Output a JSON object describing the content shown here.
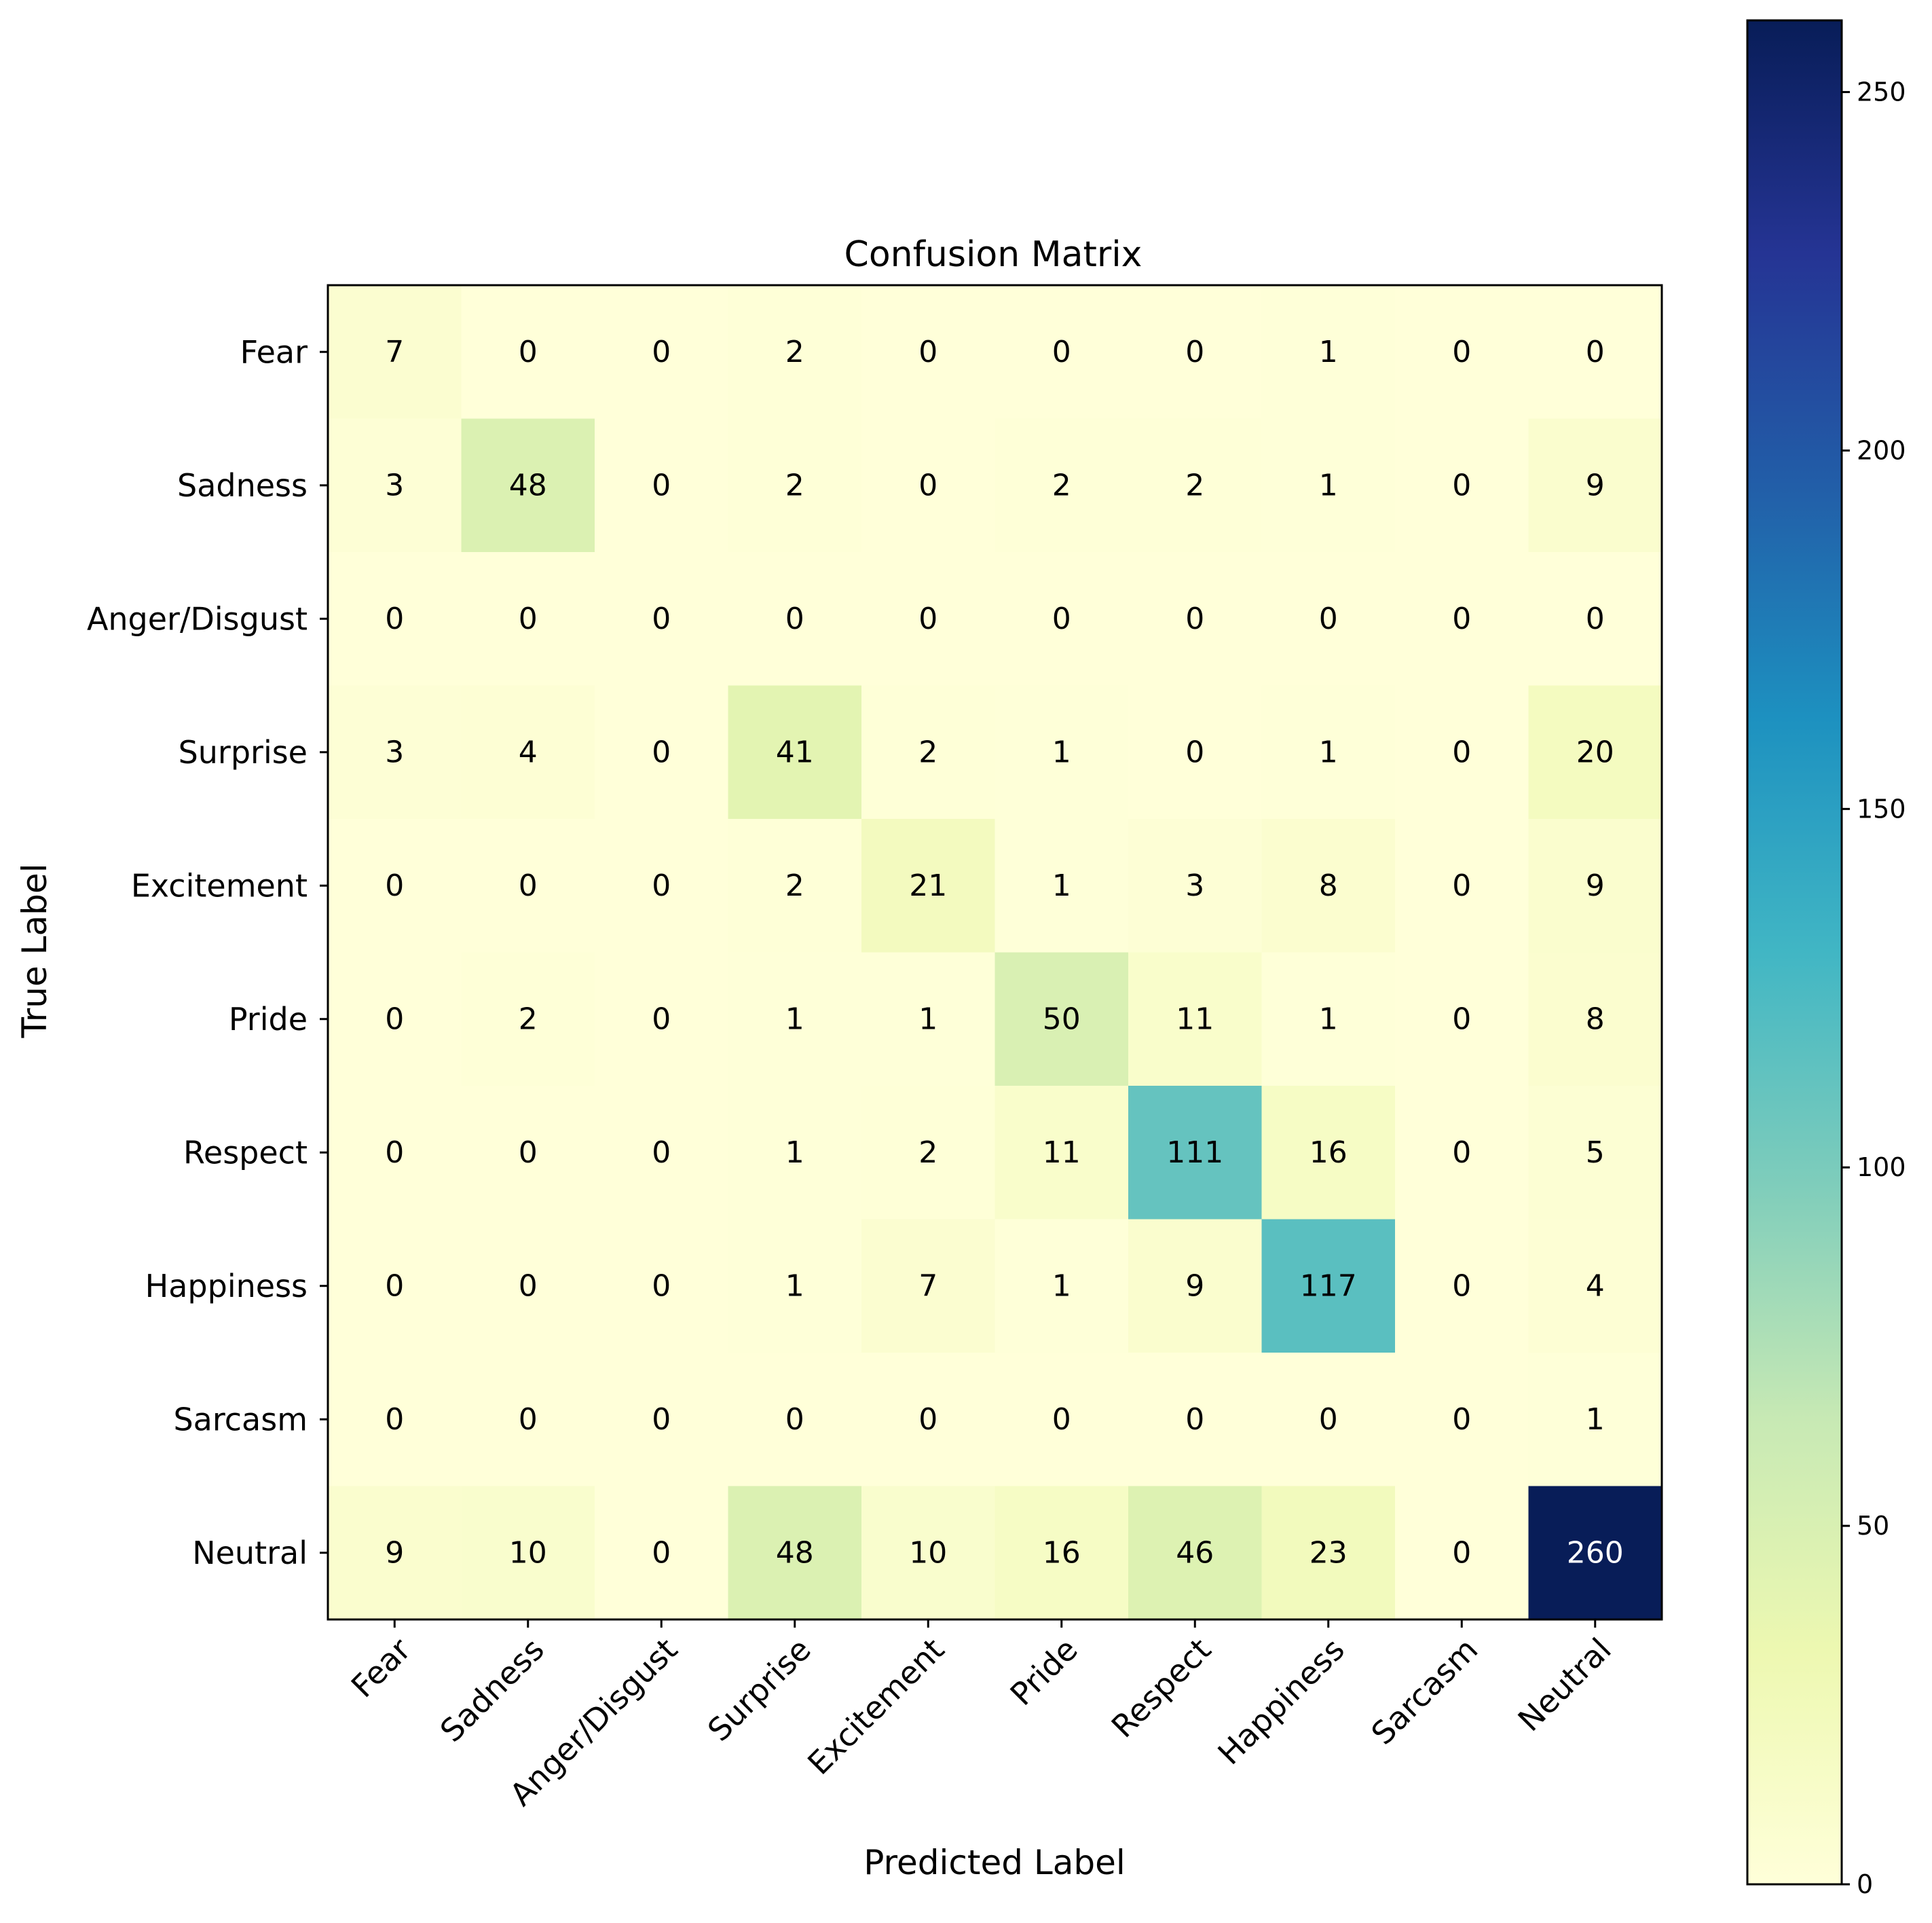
{
  "chart_data": {
    "type": "heatmap",
    "title": "Confusion Matrix",
    "xlabel": "Predicted Label",
    "ylabel": "True Label",
    "x_categories": [
      "Fear",
      "Sadness",
      "Anger/Disgust",
      "Surprise",
      "Excitement",
      "Pride",
      "Respect",
      "Happiness",
      "Sarcasm",
      "Neutral"
    ],
    "y_categories": [
      "Fear",
      "Sadness",
      "Anger/Disgust",
      "Surprise",
      "Excitement",
      "Pride",
      "Respect",
      "Happiness",
      "Sarcasm",
      "Neutral"
    ],
    "values": [
      [
        7,
        0,
        0,
        2,
        0,
        0,
        0,
        1,
        0,
        0
      ],
      [
        3,
        48,
        0,
        2,
        0,
        2,
        2,
        1,
        0,
        9
      ],
      [
        0,
        0,
        0,
        0,
        0,
        0,
        0,
        0,
        0,
        0
      ],
      [
        3,
        4,
        0,
        41,
        2,
        1,
        0,
        1,
        0,
        20
      ],
      [
        0,
        0,
        0,
        2,
        21,
        1,
        3,
        8,
        0,
        9
      ],
      [
        0,
        2,
        0,
        1,
        1,
        50,
        11,
        1,
        0,
        8
      ],
      [
        0,
        0,
        0,
        1,
        2,
        11,
        111,
        16,
        0,
        5
      ],
      [
        0,
        0,
        0,
        1,
        7,
        1,
        9,
        117,
        0,
        4
      ],
      [
        0,
        0,
        0,
        0,
        0,
        0,
        0,
        0,
        0,
        1
      ],
      [
        9,
        10,
        0,
        48,
        10,
        16,
        46,
        23,
        0,
        260
      ]
    ],
    "colormap": "YlGnBu",
    "colormap_stops": [
      "#ffffd9",
      "#edf8b1",
      "#c7e9b4",
      "#7fcdbb",
      "#41b6c4",
      "#1d91c0",
      "#225ea8",
      "#253494",
      "#081d58"
    ],
    "colorbar": {
      "range": [
        0,
        260
      ],
      "ticks": [
        0,
        50,
        100,
        150,
        200,
        250
      ]
    },
    "text_color_dark": "#000000",
    "text_color_light": "#ffffff"
  }
}
